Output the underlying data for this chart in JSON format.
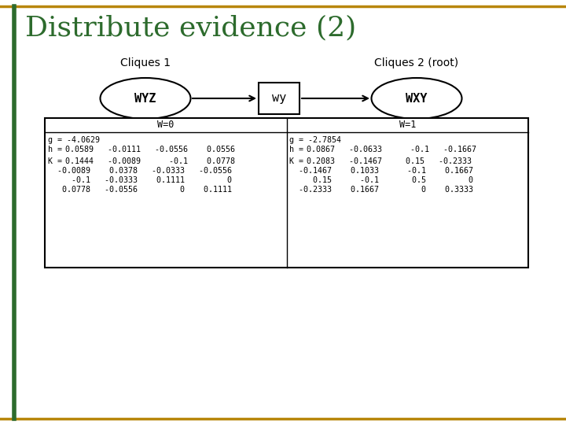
{
  "title": "Distribute evidence (2)",
  "title_color": "#2d6b2d",
  "title_fontsize": 26,
  "bg_color": "#ffffff",
  "border_color": "#b8860b",
  "cliques1_label": "Cliques 1",
  "cliques2_label": "Cliques 2 (root)",
  "node_wyz": "WYZ",
  "node_wy": "wy",
  "node_wxy": "WXY",
  "table_header_left": "W=0",
  "table_header_right": "W=1",
  "left_g": "g = -4.0629",
  "left_h_label": "h =",
  "left_h_vals": "0.0589   -0.0111   -0.0556    0.0556",
  "left_K_label": "K =",
  "left_K_row0": "0.1444   -0.0089      -0.1    0.0778",
  "left_K_row1": "  -0.0089    0.0378   -0.0333   -0.0556",
  "left_K_row2": "     -0.1   -0.0333    0.1111         0",
  "left_K_row3": "   0.0778   -0.0556         0    0.1111",
  "right_g": "g = -2.7854",
  "right_h_label": "h =",
  "right_h_vals": "0.0867   -0.0633      -0.1   -0.1667",
  "right_K_label": "K =",
  "right_K_row0": "0.2083   -0.1467     0.15   -0.2333",
  "right_K_row1": "  -0.1467    0.1033      -0.1    0.1667",
  "right_K_row2": "     0.15      -0.1       0.5         0",
  "right_K_row3": "  -0.2333    0.1667         0    0.3333"
}
